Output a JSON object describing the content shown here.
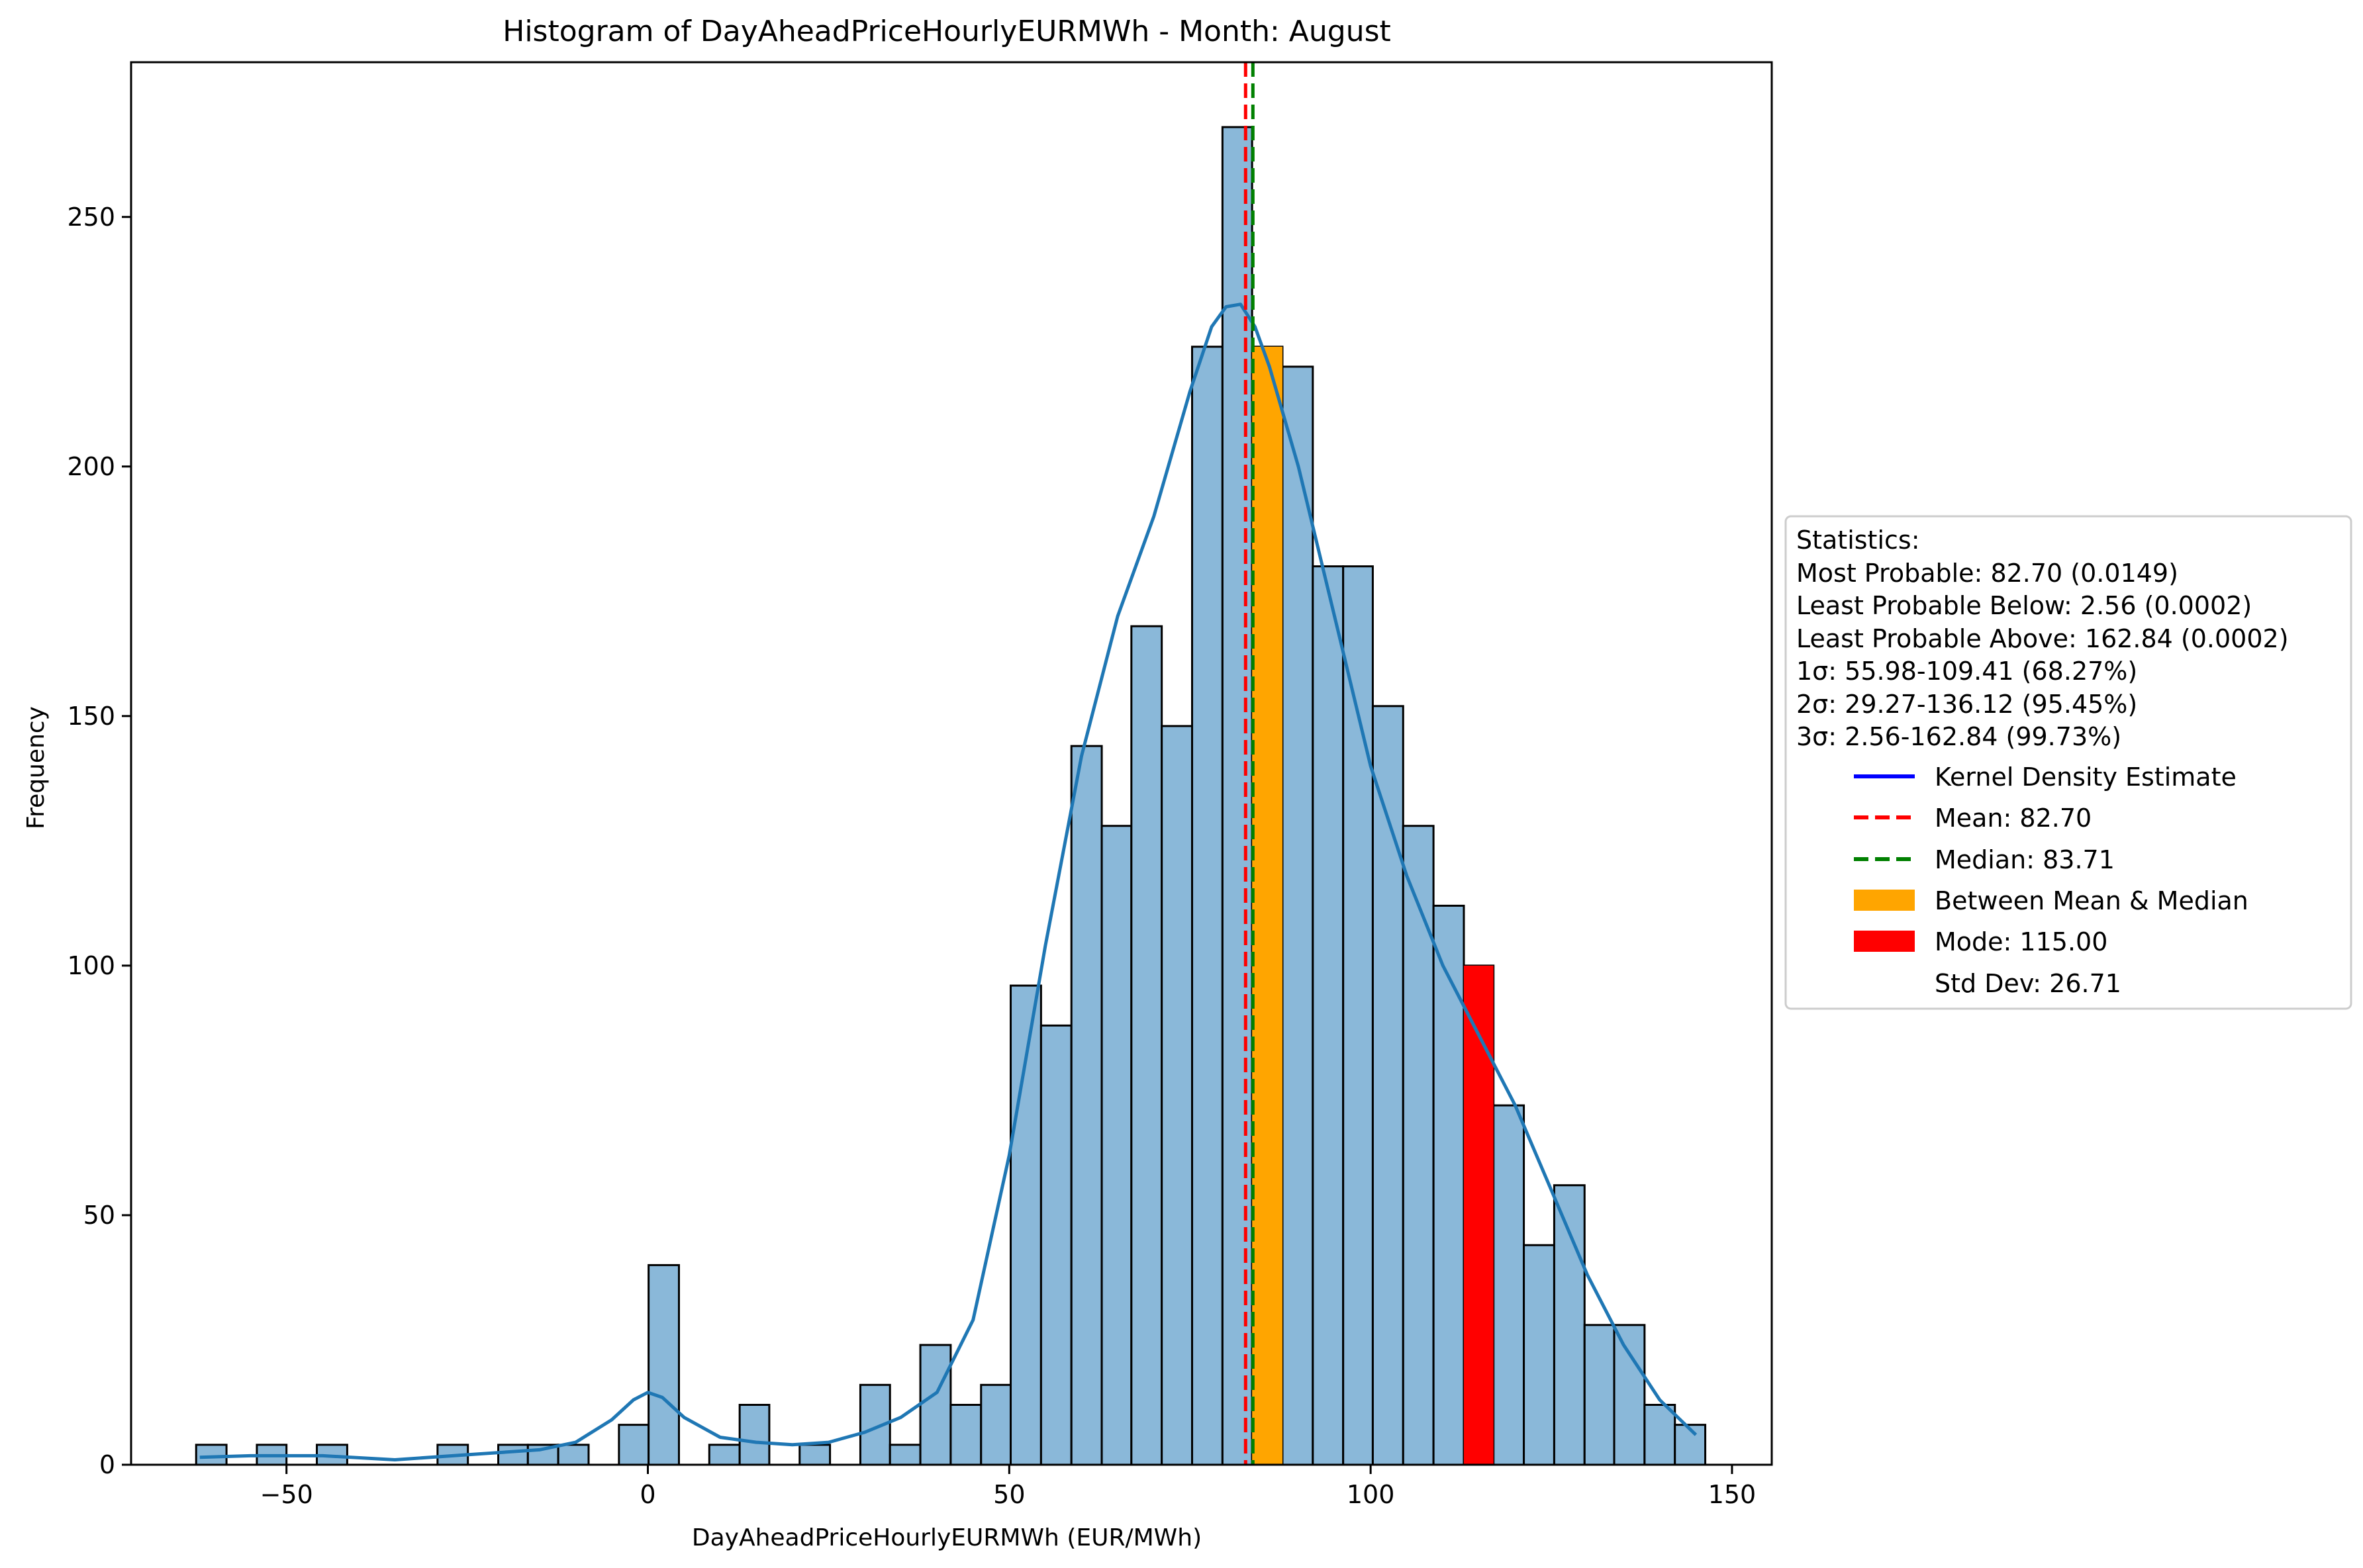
{
  "chart_data": {
    "type": "bar",
    "title": "Histogram of DayAheadPriceHourlyEURMWh - Month: August",
    "xlabel": "DayAheadPriceHourlyEURMWh (EUR/MWh)",
    "ylabel": "Frequency",
    "xlim": [
      -71.5,
      155.5
    ],
    "ylim": [
      0,
      281
    ],
    "x_ticks": [
      -50,
      0,
      50,
      100,
      150
    ],
    "x_tick_labels": [
      "−50",
      "0",
      "50",
      "100",
      "150"
    ],
    "y_ticks": [
      0,
      50,
      100,
      150,
      200,
      250
    ],
    "y_tick_labels": [
      "0",
      "50",
      "100",
      "150",
      "200",
      "250"
    ],
    "grid": false,
    "legend_placement": "outside-right",
    "bin_edges": [
      -62.5,
      -58.3,
      -54.1,
      -50.0,
      -45.8,
      -41.6,
      -37.4,
      -33.3,
      -29.1,
      -24.9,
      -20.7,
      -16.6,
      -12.4,
      -8.2,
      -4.0,
      0.1,
      4.3,
      8.5,
      12.7,
      16.8,
      21.0,
      25.2,
      29.4,
      33.5,
      37.7,
      41.9,
      46.1,
      50.2,
      54.4,
      58.6,
      62.8,
      66.9,
      71.1,
      75.3,
      79.5,
      83.6,
      87.8,
      92.0,
      96.2,
      100.3,
      104.5,
      108.7,
      112.9,
      117.0,
      121.2,
      125.4,
      129.6,
      133.7,
      137.9,
      142.1,
      146.3
    ],
    "counts": [
      4,
      0,
      4,
      0,
      4,
      0,
      0,
      0,
      4,
      0,
      4,
      4,
      4,
      0,
      8,
      40,
      0,
      4,
      12,
      0,
      4,
      0,
      16,
      4,
      24,
      12,
      16,
      96,
      88,
      144,
      128,
      168,
      148,
      224,
      268,
      224,
      220,
      180,
      180,
      152,
      128,
      112,
      100,
      72,
      44,
      56,
      28,
      28,
      12,
      8
    ],
    "highlighted_bins": [
      {
        "x0": 83.6,
        "x1": 87.8,
        "count": 224,
        "label": "Between Mean & Median",
        "color": "#ffa500"
      },
      {
        "x0": 112.9,
        "x1": 117.0,
        "count": 100,
        "label": "Mode: 115.00",
        "color": "#ff0000"
      }
    ],
    "kde": {
      "x": [
        -62,
        -55,
        -45,
        -35,
        -25,
        -15,
        -10,
        -5,
        -2,
        0,
        2,
        5,
        10,
        15,
        20,
        25,
        30,
        35,
        40,
        45,
        50,
        55,
        60,
        65,
        70,
        75,
        78,
        80,
        82,
        84,
        86,
        90,
        95,
        100,
        105,
        110,
        115,
        120,
        125,
        130,
        135,
        140,
        145
      ],
      "y": [
        1.5,
        1.8,
        1.8,
        1.0,
        2.0,
        3.0,
        4.5,
        9.0,
        13.0,
        14.5,
        13.5,
        9.5,
        5.5,
        4.5,
        4.0,
        4.5,
        6.5,
        9.5,
        14.5,
        29.0,
        62.0,
        104.0,
        142.0,
        170.0,
        190.0,
        215.0,
        228.0,
        232.0,
        232.5,
        228.0,
        220.0,
        200.0,
        170.0,
        140.0,
        118.0,
        100.0,
        86.0,
        72.0,
        55.0,
        38.0,
        24.0,
        13.0,
        6.0
      ]
    },
    "mean": 82.7,
    "median": 83.71,
    "std_dev": 26.71,
    "hist_color": "#8ab8d9",
    "kde_color": "#1f77b4",
    "mean_color": "#ff0000",
    "median_color": "#008000",
    "legend": {
      "stats_title": "Statistics:",
      "stats_lines": [
        "Most Probable: 82.70 (0.0149)",
        "Least Probable Below: 2.56 (0.0002)",
        "Least Probable Above: 162.84 (0.0002)",
        "1σ: 55.98-109.41 (68.27%)",
        "2σ: 29.27-136.12 (95.45%)",
        "3σ: 2.56-162.84 (99.73%)"
      ],
      "entries": [
        {
          "label": "Kernel Density Estimate",
          "kind": "line",
          "color": "#0000ff"
        },
        {
          "label": "Mean: 82.70",
          "kind": "dashed",
          "color": "#ff0000"
        },
        {
          "label": "Median: 83.71",
          "kind": "dashed",
          "color": "#008000"
        },
        {
          "label": "Between Mean & Median",
          "kind": "patch",
          "color": "#ffa500"
        },
        {
          "label": "Mode: 115.00",
          "kind": "patch",
          "color": "#ff0000"
        },
        {
          "label": "Std Dev: 26.71",
          "kind": "none",
          "color": "#ffffff"
        }
      ]
    }
  }
}
